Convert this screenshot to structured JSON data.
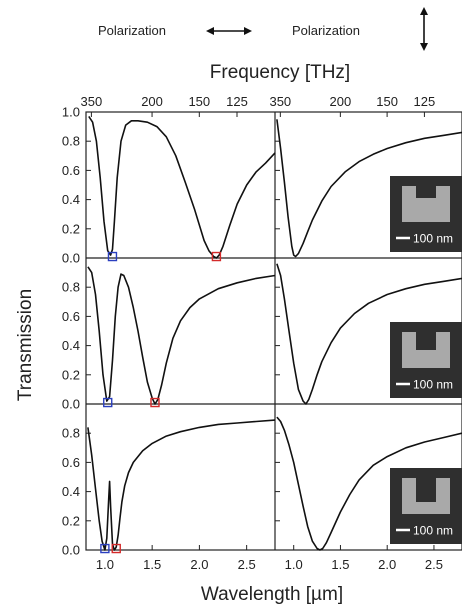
{
  "header": {
    "left_label": "Polarization",
    "right_label": "Polarization"
  },
  "icons": {
    "left_arrow": "double-arrow-horizontal",
    "right_arrow": "double-arrow-vertical",
    "inset": "split-ring-resonator-micrograph"
  },
  "colors": {
    "curve": "#111111",
    "marker_blue": "#2b3fbf",
    "marker_red": "#d42a2a",
    "inset_bg": "#2f2f2f",
    "inset_shape": "#a9a9a9"
  },
  "chart_data": {
    "type": "line",
    "layout": "3x2 grid",
    "xlabel": "Wavelength [µm]",
    "ylabel": "Transmission",
    "top_axis_label": "Frequency [THz]",
    "xlim": [
      0.8,
      2.8
    ],
    "ylim": [
      0,
      1.0
    ],
    "x_ticks": [
      "1.0",
      "1.5",
      "2.0",
      "2.5"
    ],
    "x_tick_values": [
      1.0,
      1.5,
      2.0,
      2.5
    ],
    "y_ticks_top_row": [
      "0.0",
      "0.2",
      "0.4",
      "0.6",
      "0.8",
      "1.0"
    ],
    "y_ticks": [
      "0.0",
      "0.2",
      "0.4",
      "0.6",
      "0.8"
    ],
    "freq_ticks": [
      "350",
      "200",
      "150",
      "125"
    ],
    "freq_tick_wavelengths": [
      0.857,
      1.499,
      1.999,
      2.398
    ],
    "inset_label": "100 nm",
    "panels": [
      {
        "row": 0,
        "col": 0,
        "x": [
          0.83,
          0.87,
          0.91,
          0.95,
          0.99,
          1.03,
          1.06,
          1.08,
          1.1,
          1.13,
          1.17,
          1.22,
          1.28,
          1.35,
          1.45,
          1.55,
          1.65,
          1.75,
          1.85,
          1.95,
          2.05,
          2.1,
          2.15,
          2.18,
          2.21,
          2.25,
          2.32,
          2.4,
          2.5,
          2.6,
          2.7,
          2.8
        ],
        "y": [
          0.97,
          0.93,
          0.8,
          0.55,
          0.25,
          0.05,
          0.02,
          0.06,
          0.25,
          0.55,
          0.8,
          0.91,
          0.94,
          0.94,
          0.93,
          0.9,
          0.83,
          0.7,
          0.52,
          0.33,
          0.12,
          0.05,
          0.01,
          0.0,
          0.02,
          0.08,
          0.22,
          0.37,
          0.5,
          0.59,
          0.65,
          0.72
        ],
        "markers": [
          {
            "x": 1.08,
            "y": 0.01,
            "color": "blue"
          },
          {
            "x": 2.18,
            "y": 0.01,
            "color": "red"
          }
        ]
      },
      {
        "row": 0,
        "col": 1,
        "x": [
          0.82,
          0.86,
          0.9,
          0.94,
          0.98,
          1.0,
          1.02,
          1.05,
          1.1,
          1.15,
          1.2,
          1.3,
          1.4,
          1.55,
          1.7,
          1.85,
          2.0,
          2.2,
          2.4,
          2.6,
          2.8
        ],
        "y": [
          0.95,
          0.75,
          0.52,
          0.28,
          0.08,
          0.02,
          0.01,
          0.03,
          0.1,
          0.18,
          0.26,
          0.39,
          0.49,
          0.59,
          0.66,
          0.71,
          0.75,
          0.79,
          0.82,
          0.84,
          0.86
        ],
        "markers": []
      },
      {
        "row": 1,
        "col": 0,
        "x": [
          0.82,
          0.86,
          0.9,
          0.94,
          0.98,
          1.02,
          1.05,
          1.08,
          1.11,
          1.14,
          1.17,
          1.2,
          1.25,
          1.3,
          1.35,
          1.4,
          1.45,
          1.5,
          1.53,
          1.56,
          1.6,
          1.65,
          1.72,
          1.8,
          1.9,
          2.0,
          2.2,
          2.4,
          2.6,
          2.8
        ],
        "y": [
          0.94,
          0.9,
          0.75,
          0.5,
          0.2,
          0.02,
          0.05,
          0.3,
          0.6,
          0.8,
          0.89,
          0.88,
          0.8,
          0.66,
          0.5,
          0.32,
          0.15,
          0.04,
          0.0,
          0.03,
          0.13,
          0.28,
          0.45,
          0.57,
          0.66,
          0.72,
          0.79,
          0.83,
          0.86,
          0.88
        ],
        "markers": [
          {
            "x": 1.03,
            "y": 0.01,
            "color": "blue"
          },
          {
            "x": 1.53,
            "y": 0.01,
            "color": "red"
          }
        ]
      },
      {
        "row": 1,
        "col": 1,
        "x": [
          0.82,
          0.86,
          0.9,
          0.95,
          1.0,
          1.05,
          1.1,
          1.13,
          1.16,
          1.2,
          1.25,
          1.3,
          1.4,
          1.5,
          1.65,
          1.8,
          2.0,
          2.2,
          2.4,
          2.6,
          2.8
        ],
        "y": [
          0.96,
          0.88,
          0.72,
          0.5,
          0.28,
          0.1,
          0.02,
          0.0,
          0.03,
          0.1,
          0.2,
          0.29,
          0.42,
          0.52,
          0.62,
          0.69,
          0.75,
          0.79,
          0.82,
          0.84,
          0.86
        ],
        "markers": []
      },
      {
        "row": 2,
        "col": 0,
        "x": [
          0.82,
          0.86,
          0.9,
          0.94,
          0.97,
          1.0,
          1.02,
          1.04,
          1.05,
          1.06,
          1.08,
          1.1,
          1.12,
          1.14,
          1.16,
          1.18,
          1.21,
          1.25,
          1.3,
          1.4,
          1.5,
          1.65,
          1.8,
          2.0,
          2.2,
          2.4,
          2.6,
          2.8
        ],
        "y": [
          0.84,
          0.65,
          0.42,
          0.2,
          0.06,
          0.0,
          0.08,
          0.35,
          0.47,
          0.3,
          0.04,
          0.0,
          0.02,
          0.1,
          0.22,
          0.33,
          0.44,
          0.53,
          0.6,
          0.68,
          0.73,
          0.78,
          0.81,
          0.84,
          0.86,
          0.87,
          0.88,
          0.89
        ],
        "markers": [
          {
            "x": 1.0,
            "y": 0.01,
            "color": "blue"
          },
          {
            "x": 1.12,
            "y": 0.01,
            "color": "red"
          }
        ]
      },
      {
        "row": 2,
        "col": 1,
        "x": [
          0.82,
          0.86,
          0.9,
          0.95,
          1.0,
          1.05,
          1.1,
          1.15,
          1.2,
          1.25,
          1.28,
          1.31,
          1.35,
          1.4,
          1.5,
          1.6,
          1.7,
          1.85,
          2.0,
          2.2,
          2.4,
          2.6,
          2.8
        ],
        "y": [
          0.91,
          0.88,
          0.82,
          0.72,
          0.6,
          0.45,
          0.3,
          0.16,
          0.06,
          0.01,
          0.0,
          0.01,
          0.05,
          0.12,
          0.26,
          0.38,
          0.48,
          0.58,
          0.64,
          0.7,
          0.74,
          0.77,
          0.8
        ],
        "markers": []
      }
    ]
  }
}
